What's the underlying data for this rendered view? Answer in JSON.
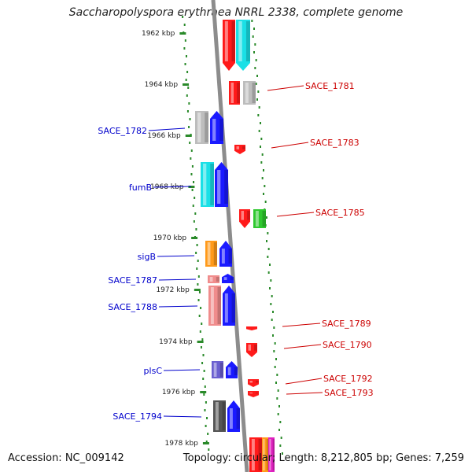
{
  "title": "Saccharopolyspora erythraea NRRL 2338, complete genome",
  "footer": {
    "accession": "Accession: NC_009142",
    "topology": "Topology: circular; Length: 8,212,805 bp; Genes: 7,259"
  },
  "colors": {
    "backbone": "#8c8c8c",
    "tick": "#2a8a2a",
    "label_forward": "#cc0000",
    "label_reverse": "#0000cc",
    "red": "#ff1a1a",
    "cyan": "#1ae0e6",
    "blue": "#1a1aff",
    "grey": "#bdbdbd",
    "green": "#2ec82e",
    "orange": "#ff9a1a",
    "pink": "#f08c8c",
    "purple": "#6b5fd0",
    "dark": "#555555",
    "magenta": "#e020c0"
  },
  "kbp_ticks": [
    "1962 kbp",
    "1964 kbp",
    "1966 kbp",
    "1968 kbp",
    "1970 kbp",
    "1972 kbp",
    "1974 kbp",
    "1976 kbp",
    "1978 kbp"
  ],
  "gene_labels": [
    {
      "text": "SACE_1781",
      "strand": "forward"
    },
    {
      "text": "SACE_1782",
      "strand": "reverse"
    },
    {
      "text": "SACE_1783",
      "strand": "forward"
    },
    {
      "text": "fumB",
      "strand": "reverse"
    },
    {
      "text": "SACE_1785",
      "strand": "forward"
    },
    {
      "text": "sigB",
      "strand": "reverse"
    },
    {
      "text": "SACE_1787",
      "strand": "reverse"
    },
    {
      "text": "SACE_1788",
      "strand": "reverse"
    },
    {
      "text": "SACE_1789",
      "strand": "forward"
    },
    {
      "text": "SACE_1790",
      "strand": "forward"
    },
    {
      "text": "plsC",
      "strand": "reverse"
    },
    {
      "text": "SACE_1792",
      "strand": "forward"
    },
    {
      "text": "SACE_1793",
      "strand": "forward"
    },
    {
      "text": "SACE_1794",
      "strand": "reverse"
    }
  ]
}
